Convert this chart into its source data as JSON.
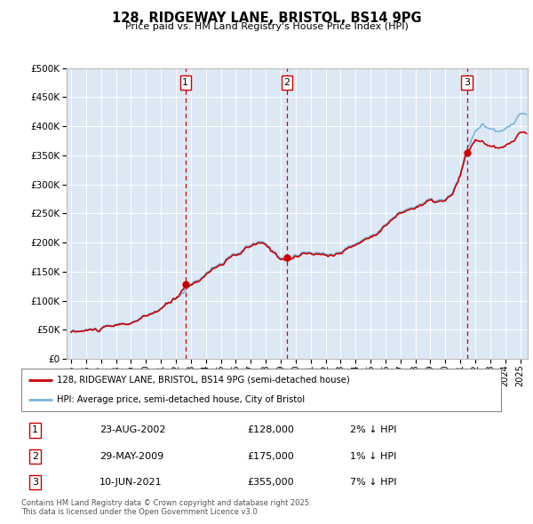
{
  "title": "128, RIDGEWAY LANE, BRISTOL, BS14 9PG",
  "subtitle": "Price paid vs. HM Land Registry's House Price Index (HPI)",
  "ytick_values": [
    0,
    50000,
    100000,
    150000,
    200000,
    250000,
    300000,
    350000,
    400000,
    450000,
    500000
  ],
  "ylim": [
    0,
    500000
  ],
  "xlim_start": 1994.7,
  "xlim_end": 2025.5,
  "legend_line1": "128, RIDGEWAY LANE, BRISTOL, BS14 9PG (semi-detached house)",
  "legend_line2": "HPI: Average price, semi-detached house, City of Bristol",
  "transactions": [
    {
      "num": 1,
      "date": "23-AUG-2002",
      "price": "£128,000",
      "pct": "2% ↓ HPI",
      "year": 2002.64,
      "price_val": 128000
    },
    {
      "num": 2,
      "date": "29-MAY-2009",
      "price": "£175,000",
      "pct": "1% ↓ HPI",
      "year": 2009.41,
      "price_val": 175000
    },
    {
      "num": 3,
      "date": "10-JUN-2021",
      "price": "£355,000",
      "pct": "7% ↓ HPI",
      "year": 2021.44,
      "price_val": 355000
    }
  ],
  "footnote": "Contains HM Land Registry data © Crown copyright and database right 2025.\nThis data is licensed under the Open Government Licence v3.0.",
  "hpi_color": "#7ab4d8",
  "price_color": "#cc0000",
  "marker_color": "#cc0000",
  "bg_chart": "#dde8f5",
  "grid_color": "#ffffff",
  "transaction_box_color": "#cc0000"
}
